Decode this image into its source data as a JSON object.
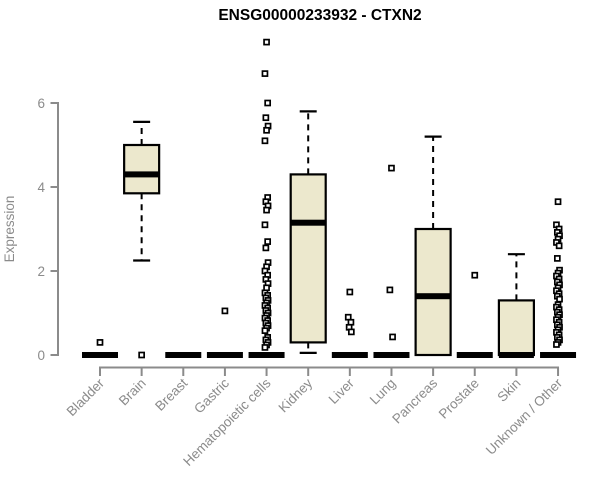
{
  "chart_data": {
    "type": "boxplot",
    "title": "ENSG00000233932 - CTXN2",
    "ylabel": "Expression",
    "y_ticks": [
      0,
      2,
      4,
      6
    ],
    "ylim": [
      0,
      7.5
    ],
    "grid": false,
    "legend": "none",
    "categories": [
      "Bladder",
      "Brain",
      "Breast",
      "Gastric",
      "Hematopoietic cells",
      "Kidney",
      "Liver",
      "Lung",
      "Pancreas",
      "Prostate",
      "Skin",
      "Unknown / Other"
    ],
    "boxes": [
      {
        "category": "Bladder",
        "min": 0,
        "q1": 0,
        "median": 0,
        "q3": 0,
        "max": 0,
        "outliers": [
          0.3
        ]
      },
      {
        "category": "Brain",
        "min": 2.25,
        "q1": 3.85,
        "median": 4.3,
        "q3": 5.0,
        "max": 5.55,
        "outliers": [
          0
        ]
      },
      {
        "category": "Breast",
        "min": 0,
        "q1": 0,
        "median": 0,
        "q3": 0,
        "max": 0,
        "outliers": []
      },
      {
        "category": "Gastric",
        "min": 0,
        "q1": 0,
        "median": 0,
        "q3": 0,
        "max": 0,
        "outliers": [
          1.05
        ]
      },
      {
        "category": "Hematopoietic cells",
        "min": 0,
        "q1": 0,
        "median": 0,
        "q3": 0,
        "max": 0,
        "outliers": [
          7.45,
          6.7,
          6.0,
          5.65,
          5.45,
          5.35,
          5.1,
          3.75,
          3.65,
          3.55,
          3.45,
          3.1,
          2.7,
          2.55,
          2.2,
          2.1,
          2.0,
          1.9,
          1.8,
          1.7,
          1.6,
          1.48,
          1.42,
          1.36,
          1.3,
          1.24,
          1.18,
          1.12,
          1.06,
          1.0,
          0.94,
          0.88,
          0.82,
          0.76,
          0.7,
          0.64,
          0.58,
          0.42,
          0.36,
          0.3,
          0.24,
          0.18
        ]
      },
      {
        "category": "Kidney",
        "min": 0.05,
        "q1": 0.3,
        "median": 3.15,
        "q3": 4.3,
        "max": 5.8,
        "outliers": []
      },
      {
        "category": "Liver",
        "min": 0,
        "q1": 0,
        "median": 0,
        "q3": 0,
        "max": 0,
        "outliers": [
          1.5,
          0.9,
          0.78,
          0.66,
          0.55
        ]
      },
      {
        "category": "Lung",
        "min": 0,
        "q1": 0,
        "median": 0,
        "q3": 0,
        "max": 0,
        "outliers": [
          4.45,
          1.55,
          0.43
        ]
      },
      {
        "category": "Pancreas",
        "min": 0,
        "q1": 0,
        "median": 1.4,
        "q3": 3.0,
        "max": 5.2,
        "outliers": []
      },
      {
        "category": "Prostate",
        "min": 0,
        "q1": 0,
        "median": 0,
        "q3": 0,
        "max": 0,
        "outliers": [
          1.9
        ]
      },
      {
        "category": "Skin",
        "min": 0,
        "q1": 0,
        "median": 0,
        "q3": 1.3,
        "max": 2.4,
        "outliers": []
      },
      {
        "category": "Unknown / Other",
        "min": 0,
        "q1": 0,
        "median": 0,
        "q3": 0,
        "max": 0,
        "outliers": [
          3.65,
          3.1,
          3.0,
          2.92,
          2.84,
          2.76,
          2.68,
          2.6,
          2.3,
          2.02,
          1.95,
          1.88,
          1.81,
          1.74,
          1.67,
          1.6,
          1.53,
          1.46,
          1.4,
          1.33,
          1.2,
          1.14,
          1.08,
          1.02,
          0.96,
          0.9,
          0.84,
          0.78,
          0.72,
          0.66,
          0.6,
          0.54,
          0.48,
          0.42,
          0.36,
          0.3,
          0.25
        ]
      }
    ],
    "colors": {
      "box_fill": "#ece8cd",
      "box_stroke": "#000000",
      "median": "#000000",
      "whisker": "#000000",
      "outlier_stroke": "#000000",
      "outlier_fill": "#ffffff",
      "axis": "#8b8b8b",
      "tick_label": "#8b8b8b",
      "title": "#000000",
      "background": "#ffffff"
    }
  }
}
